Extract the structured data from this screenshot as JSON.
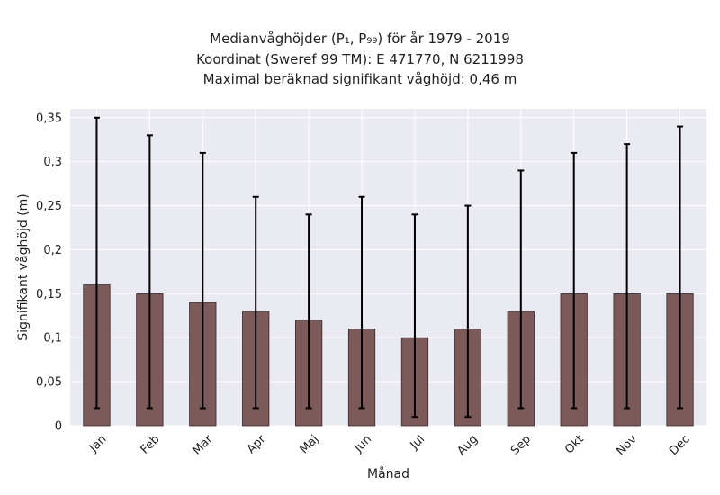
{
  "chart_data": {
    "type": "bar",
    "title_lines": [
      "Medianvåghöjder (P₁, P₉₉) för år 1979 - 2019",
      "Koordinat (Sweref 99 TM): E 471770, N 6211998",
      "Maximal beräknad signifikant våghöjd: 0,46 m"
    ],
    "xlabel": "Månad",
    "ylabel": "Signifikant våghöjd (m)",
    "categories": [
      "Jan",
      "Feb",
      "Mar",
      "Apr",
      "Maj",
      "Jun",
      "Jul",
      "Aug",
      "Sep",
      "Okt",
      "Nov",
      "Dec"
    ],
    "values": [
      0.16,
      0.15,
      0.14,
      0.13,
      0.12,
      0.11,
      0.1,
      0.11,
      0.13,
      0.15,
      0.15,
      0.15
    ],
    "p1": [
      0.02,
      0.02,
      0.02,
      0.02,
      0.02,
      0.02,
      0.01,
      0.01,
      0.02,
      0.02,
      0.02,
      0.02
    ],
    "p99": [
      0.35,
      0.33,
      0.31,
      0.26,
      0.24,
      0.26,
      0.24,
      0.25,
      0.29,
      0.31,
      0.32,
      0.34
    ],
    "ylim": [
      0,
      0.36
    ],
    "yticks": [
      0,
      0.05,
      0.1,
      0.15,
      0.2,
      0.25,
      0.3,
      0.35
    ],
    "ytick_labels": [
      "0",
      "0,05",
      "0,1",
      "0,15",
      "0,2",
      "0,25",
      "0,3",
      "0,35"
    ],
    "grid": true,
    "colors": {
      "bar": "#7d5a5a",
      "bar_edge": "#3a2a2a",
      "plot_bg": "#eaeaf2",
      "grid": "#ffffff",
      "error": "#000000"
    }
  }
}
